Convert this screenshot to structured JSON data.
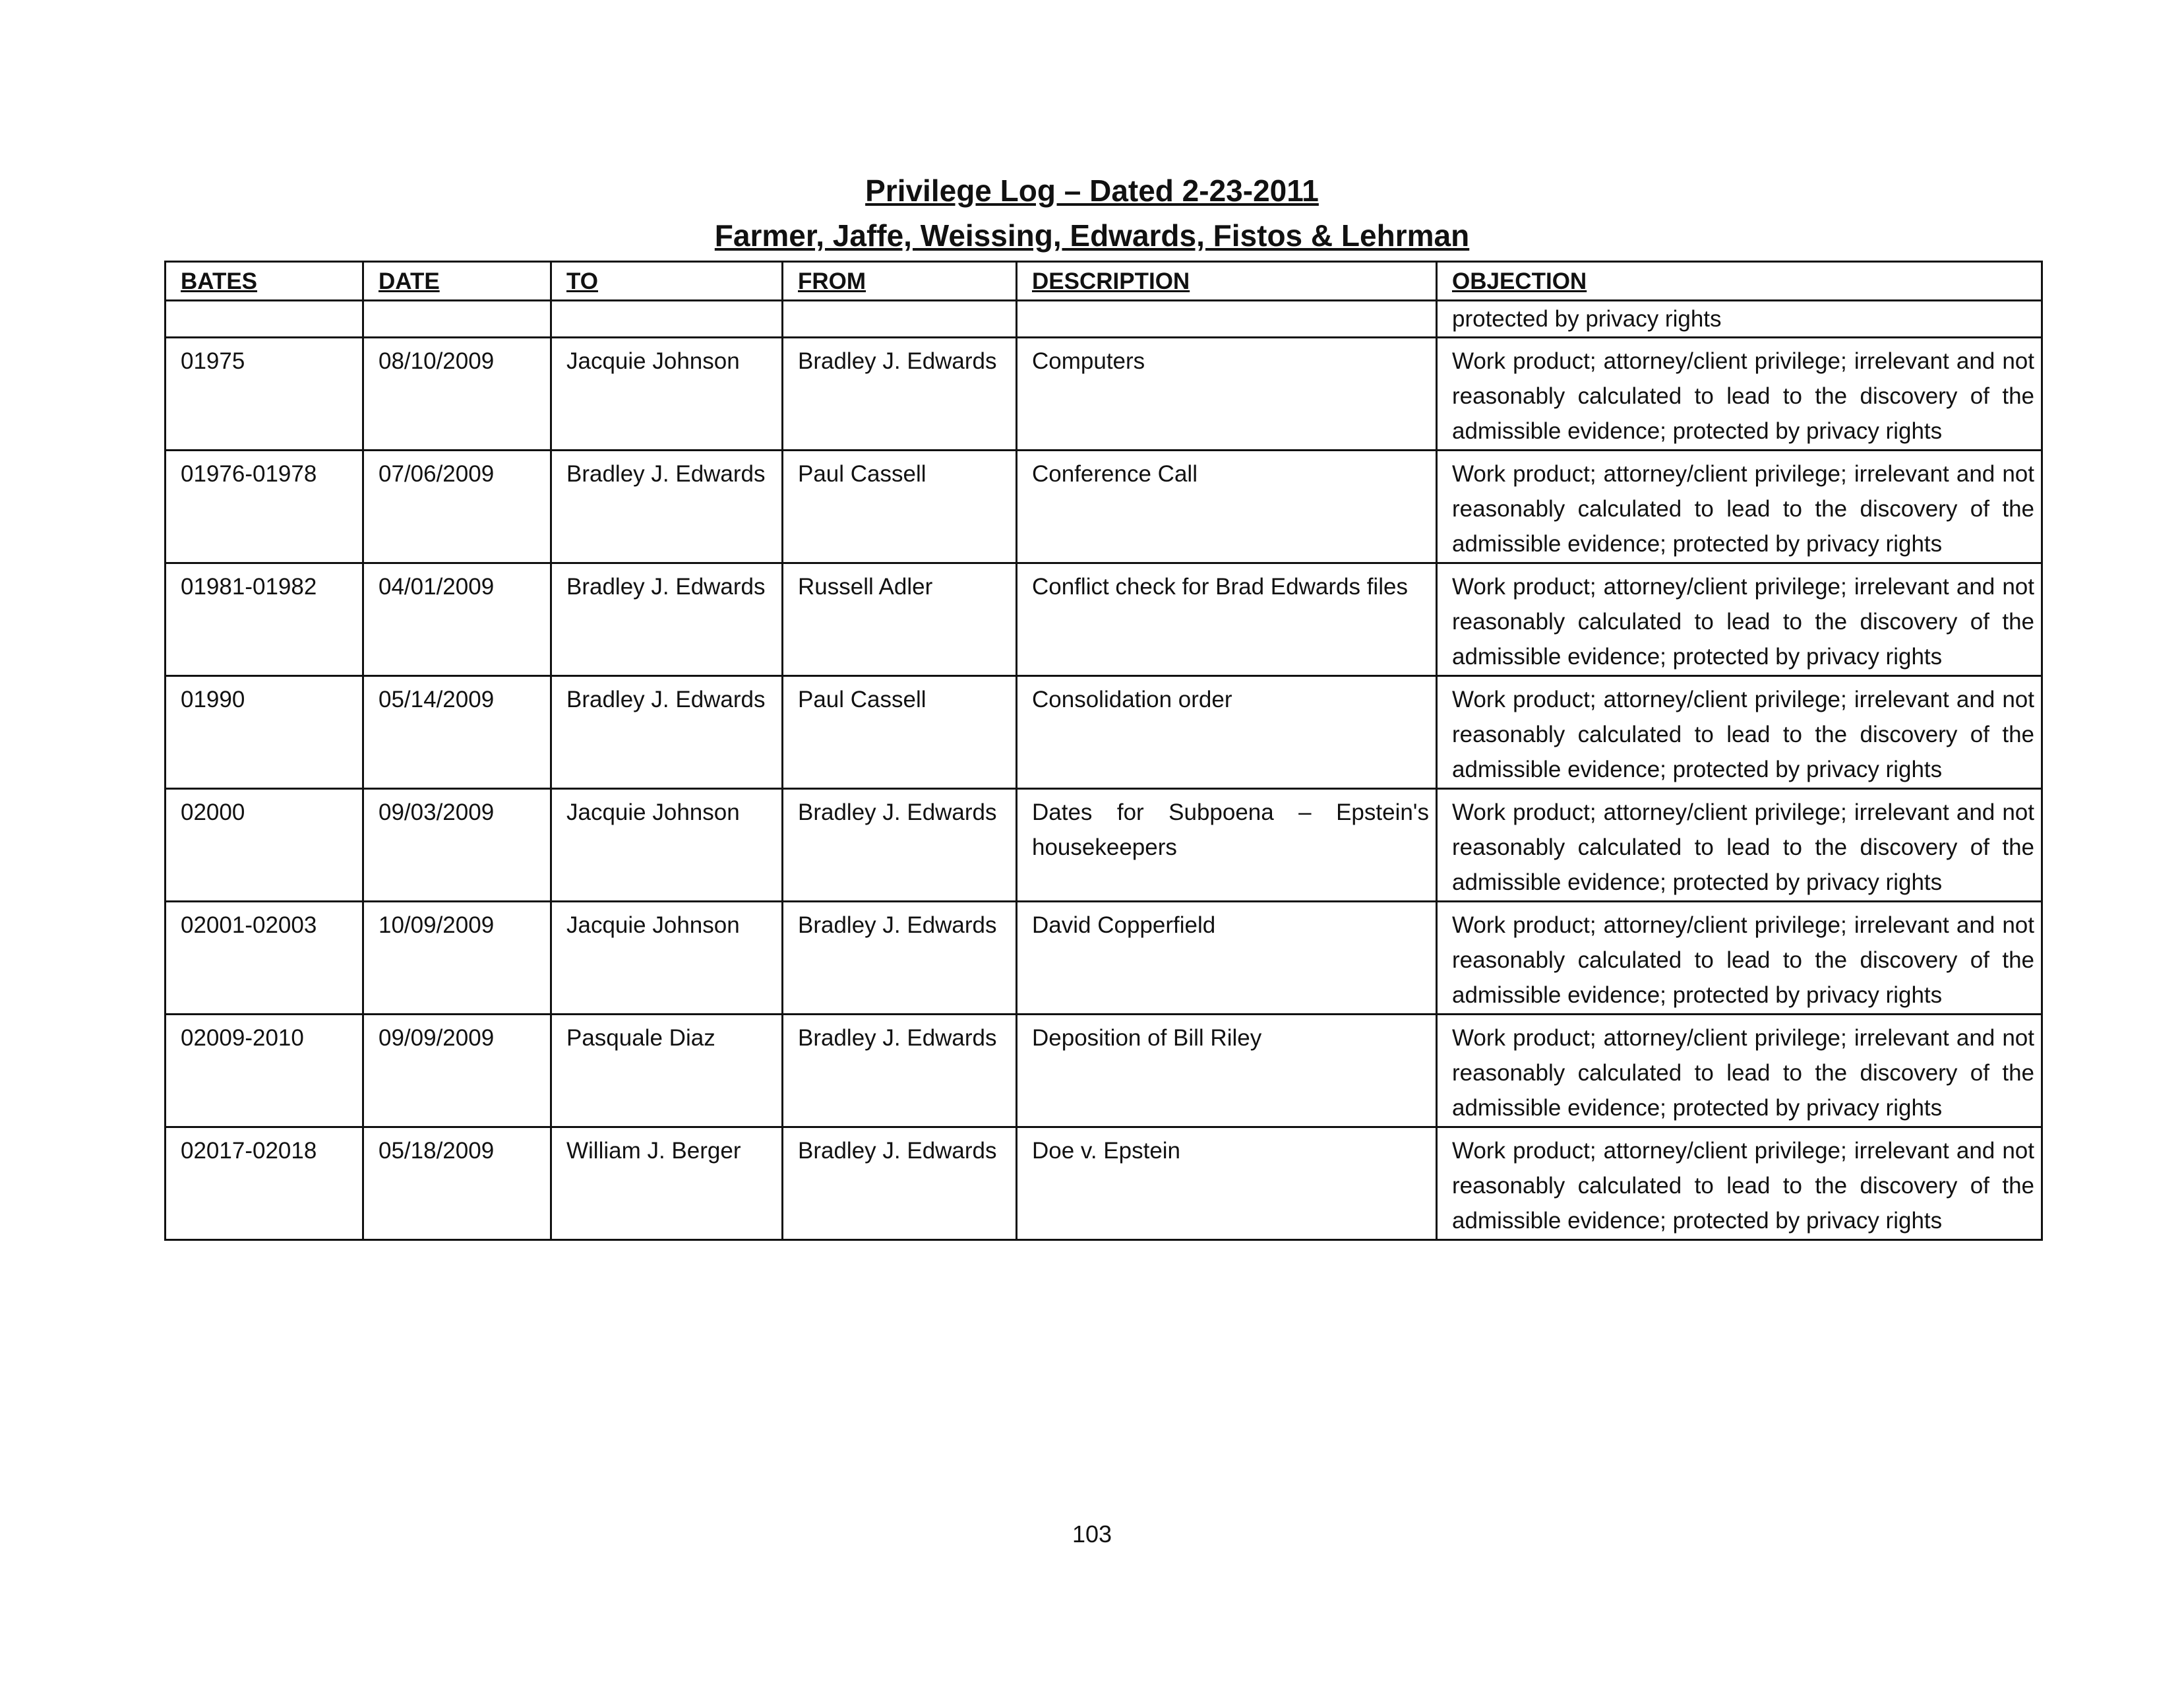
{
  "title": "Privilege Log – Dated 2-23-2011",
  "subtitle": "Farmer, Jaffe, Weissing, Edwards, Fistos & Lehrman",
  "columns": [
    "BATES",
    "DATE",
    "TO",
    "FROM",
    "DESCRIPTION",
    "OBJECTION"
  ],
  "continuation_objection": "protected by privacy rights",
  "rows": [
    {
      "bates": "01975",
      "date": "08/10/2009",
      "to": "Jacquie Johnson",
      "from": "Bradley J. Edwards",
      "description": "Computers",
      "objection": "Work product; attorney/client privilege; irrelevant and not reasonably calculated to lead to the discovery of the admissible evidence; protected by privacy rights"
    },
    {
      "bates": "01976-01978",
      "date": "07/06/2009",
      "to": "Bradley J. Edwards",
      "from": "Paul Cassell",
      "description": "Conference Call",
      "objection": "Work product; attorney/client privilege; irrelevant and not reasonably calculated to lead to the discovery of the admissible evidence; protected by privacy rights"
    },
    {
      "bates": "01981-01982",
      "date": "04/01/2009",
      "to": "Bradley J. Edwards",
      "from": "Russell Adler",
      "description": "Conflict check for Brad Edwards files",
      "objection": "Work product; attorney/client privilege; irrelevant and not reasonably calculated to lead to the discovery of the admissible evidence; protected by privacy rights"
    },
    {
      "bates": "01990",
      "date": "05/14/2009",
      "to": "Bradley J. Edwards",
      "from": "Paul Cassell",
      "description": "Consolidation order",
      "objection": "Work product; attorney/client privilege; irrelevant and not reasonably calculated to lead to the discovery of the admissible evidence; protected by privacy rights"
    },
    {
      "bates": "02000",
      "date": "09/03/2009",
      "to": "Jacquie Johnson",
      "from": "Bradley J. Edwards",
      "description": "Dates for Subpoena – Epstein's housekeepers",
      "objection": "Work product; attorney/client privilege; irrelevant and not reasonably calculated to lead to the discovery of the admissible evidence; protected by privacy rights"
    },
    {
      "bates": "02001-02003",
      "date": "10/09/2009",
      "to": "Jacquie Johnson",
      "from": "Bradley J. Edwards",
      "description": "David Copperfield",
      "objection": "Work product; attorney/client privilege; irrelevant and not reasonably calculated to lead to the discovery of the admissible evidence; protected by privacy rights"
    },
    {
      "bates": "02009-2010",
      "date": "09/09/2009",
      "to": "Pasquale Diaz",
      "from": "Bradley J. Edwards",
      "description": "Deposition of Bill Riley",
      "objection": "Work product; attorney/client privilege; irrelevant and not reasonably calculated to lead to the discovery of the admissible evidence; protected by privacy rights"
    },
    {
      "bates": "02017-02018",
      "date": "05/18/2009",
      "to": "William J. Berger",
      "from": "Bradley J. Edwards",
      "description": "Doe v. Epstein",
      "objection": "Work product; attorney/client privilege; irrelevant and not reasonably calculated to lead to the discovery of the admissible evidence; protected by privacy rights"
    }
  ],
  "page_number": "103"
}
